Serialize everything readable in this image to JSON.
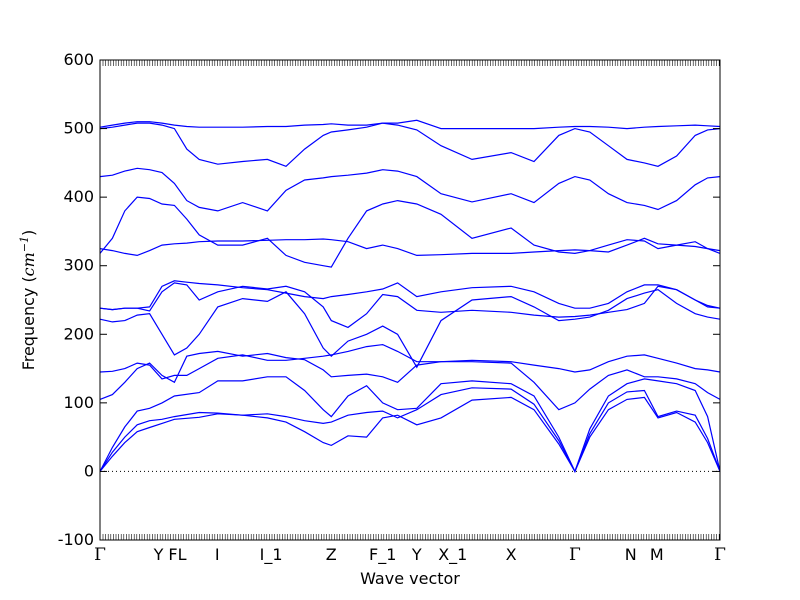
{
  "chart_data": {
    "type": "line",
    "title": "",
    "xlabel": "Wave vector",
    "ylabel": "Frequency (cm⁻¹)",
    "ylabel_prefix": "Frequency (",
    "ylabel_unit": "cm",
    "ylabel_exp": "−1",
    "ylabel_suffix": ")",
    "ylim": [
      -100,
      600
    ],
    "yticks": [
      -100,
      0,
      100,
      200,
      300,
      400,
      500,
      600
    ],
    "xlim": [
      0,
      1
    ],
    "grid": false,
    "legend": "none",
    "series_color": "#0000ff",
    "zero_line": {
      "y": 0,
      "style": "dotted",
      "color": "#000000"
    },
    "high_symmetry_points": [
      {
        "label": "Γ",
        "x": 0.0
      },
      {
        "label": "Y FL",
        "x": 0.113
      },
      {
        "label": "I",
        "x": 0.189
      },
      {
        "label": "I_1",
        "x": 0.276
      },
      {
        "label": "Z",
        "x": 0.373
      },
      {
        "label": "F_1",
        "x": 0.456
      },
      {
        "label": "Y",
        "x": 0.511
      },
      {
        "label": "X_1",
        "x": 0.569
      },
      {
        "label": "X",
        "x": 0.663
      },
      {
        "label": "Γ",
        "x": 0.766
      },
      {
        "label": "N",
        "x": 0.856
      },
      {
        "label": "M",
        "x": 0.898
      },
      {
        "label": "Γ",
        "x": 1.0
      }
    ],
    "series": [
      {
        "x": [
          0,
          0.02,
          0.04,
          0.06,
          0.08,
          0.1,
          0.12,
          0.16,
          0.19,
          0.23,
          0.27,
          0.3,
          0.33,
          0.36,
          0.373,
          0.4,
          0.43,
          0.456,
          0.48,
          0.511,
          0.55,
          0.6,
          0.663,
          0.7,
          0.74,
          0.766,
          0.79,
          0.82,
          0.85,
          0.878,
          0.9,
          0.93,
          0.96,
          0.98,
          1.0
        ],
        "values": [
          0,
          22,
          42,
          58,
          64,
          70,
          76,
          79,
          84,
          82,
          78,
          72,
          58,
          42,
          38,
          52,
          50,
          78,
          82,
          68,
          78,
          104,
          108,
          90,
          40,
          0,
          50,
          90,
          105,
          108,
          78,
          86,
          72,
          42,
          0
        ]
      },
      {
        "x": [
          0,
          0.02,
          0.04,
          0.06,
          0.08,
          0.1,
          0.12,
          0.16,
          0.19,
          0.23,
          0.27,
          0.3,
          0.33,
          0.36,
          0.373,
          0.4,
          0.43,
          0.456,
          0.48,
          0.511,
          0.55,
          0.6,
          0.663,
          0.7,
          0.74,
          0.766,
          0.79,
          0.82,
          0.85,
          0.878,
          0.9,
          0.93,
          0.96,
          0.98,
          1.0
        ],
        "values": [
          0,
          28,
          50,
          68,
          74,
          76,
          80,
          86,
          85,
          82,
          84,
          80,
          74,
          70,
          72,
          82,
          86,
          88,
          78,
          90,
          112,
          122,
          120,
          98,
          45,
          0,
          55,
          100,
          116,
          118,
          80,
          88,
          82,
          48,
          0
        ]
      },
      {
        "x": [
          0,
          0.02,
          0.04,
          0.06,
          0.08,
          0.1,
          0.12,
          0.16,
          0.19,
          0.23,
          0.27,
          0.3,
          0.33,
          0.36,
          0.373,
          0.4,
          0.43,
          0.456,
          0.48,
          0.511,
          0.55,
          0.6,
          0.663,
          0.7,
          0.74,
          0.766,
          0.79,
          0.82,
          0.85,
          0.878,
          0.9,
          0.93,
          0.96,
          0.98,
          1.0
        ],
        "values": [
          0,
          35,
          65,
          88,
          92,
          100,
          110,
          115,
          132,
          132,
          138,
          138,
          118,
          90,
          80,
          110,
          125,
          100,
          90,
          92,
          128,
          132,
          128,
          110,
          50,
          0,
          62,
          110,
          128,
          135,
          132,
          128,
          118,
          80,
          0
        ]
      },
      {
        "x": [
          0,
          0.02,
          0.04,
          0.06,
          0.08,
          0.1,
          0.12,
          0.14,
          0.16,
          0.19,
          0.23,
          0.27,
          0.3,
          0.33,
          0.36,
          0.373,
          0.4,
          0.43,
          0.456,
          0.48,
          0.511,
          0.55,
          0.6,
          0.663,
          0.7,
          0.74,
          0.766,
          0.79,
          0.82,
          0.85,
          0.878,
          0.9,
          0.93,
          0.96,
          0.98,
          1.0
        ],
        "values": [
          105,
          112,
          130,
          150,
          158,
          140,
          130,
          168,
          172,
          175,
          168,
          172,
          166,
          163,
          148,
          138,
          140,
          142,
          138,
          130,
          155,
          160,
          160,
          158,
          130,
          90,
          100,
          120,
          140,
          148,
          138,
          138,
          135,
          128,
          115,
          105
        ]
      },
      {
        "x": [
          0,
          0.02,
          0.04,
          0.06,
          0.08,
          0.1,
          0.12,
          0.14,
          0.16,
          0.19,
          0.23,
          0.27,
          0.3,
          0.33,
          0.36,
          0.373,
          0.4,
          0.43,
          0.456,
          0.48,
          0.511,
          0.55,
          0.6,
          0.663,
          0.7,
          0.74,
          0.766,
          0.79,
          0.82,
          0.85,
          0.878,
          0.9,
          0.93,
          0.96,
          0.98,
          1.0
        ],
        "values": [
          145,
          146,
          150,
          158,
          155,
          135,
          140,
          140,
          150,
          165,
          170,
          162,
          162,
          165,
          168,
          170,
          175,
          182,
          185,
          175,
          160,
          160,
          162,
          160,
          155,
          150,
          145,
          148,
          160,
          168,
          170,
          165,
          158,
          150,
          148,
          145
        ]
      },
      {
        "x": [
          0,
          0.02,
          0.04,
          0.06,
          0.08,
          0.1,
          0.12,
          0.14,
          0.16,
          0.19,
          0.23,
          0.27,
          0.3,
          0.33,
          0.36,
          0.373,
          0.4,
          0.43,
          0.456,
          0.48,
          0.511,
          0.55,
          0.6,
          0.663,
          0.7,
          0.74,
          0.766,
          0.79,
          0.82,
          0.85,
          0.878,
          0.9,
          0.93,
          0.96,
          0.98,
          1.0
        ],
        "values": [
          222,
          218,
          220,
          228,
          230,
          200,
          170,
          180,
          200,
          240,
          252,
          248,
          262,
          230,
          180,
          168,
          190,
          200,
          212,
          200,
          152,
          220,
          250,
          255,
          240,
          220,
          222,
          225,
          235,
          252,
          260,
          265,
          245,
          230,
          225,
          222
        ]
      },
      {
        "x": [
          0,
          0.02,
          0.04,
          0.06,
          0.08,
          0.1,
          0.12,
          0.14,
          0.16,
          0.19,
          0.23,
          0.27,
          0.3,
          0.33,
          0.36,
          0.373,
          0.4,
          0.43,
          0.456,
          0.48,
          0.511,
          0.55,
          0.6,
          0.663,
          0.7,
          0.74,
          0.766,
          0.79,
          0.82,
          0.85,
          0.878,
          0.9,
          0.93,
          0.96,
          0.98,
          1.0
        ],
        "values": [
          238,
          236,
          238,
          238,
          234,
          262,
          275,
          272,
          250,
          262,
          270,
          266,
          270,
          262,
          240,
          220,
          210,
          230,
          258,
          255,
          235,
          232,
          235,
          232,
          228,
          225,
          226,
          228,
          232,
          236,
          245,
          270,
          265,
          250,
          240,
          238
        ]
      },
      {
        "x": [
          0,
          0.02,
          0.04,
          0.06,
          0.08,
          0.1,
          0.12,
          0.14,
          0.16,
          0.19,
          0.23,
          0.27,
          0.3,
          0.33,
          0.36,
          0.373,
          0.4,
          0.43,
          0.456,
          0.48,
          0.511,
          0.55,
          0.6,
          0.663,
          0.7,
          0.74,
          0.766,
          0.79,
          0.82,
          0.85,
          0.878,
          0.9,
          0.93,
          0.96,
          0.98,
          1.0
        ],
        "values": [
          238,
          236,
          238,
          238,
          240,
          270,
          278,
          276,
          274,
          272,
          268,
          265,
          260,
          255,
          252,
          255,
          258,
          262,
          266,
          275,
          255,
          262,
          268,
          270,
          262,
          245,
          238,
          238,
          245,
          262,
          272,
          272,
          265,
          250,
          242,
          238
        ]
      },
      {
        "x": [
          0,
          0.02,
          0.04,
          0.06,
          0.08,
          0.1,
          0.12,
          0.14,
          0.16,
          0.19,
          0.23,
          0.27,
          0.3,
          0.33,
          0.36,
          0.373,
          0.4,
          0.43,
          0.456,
          0.48,
          0.511,
          0.55,
          0.6,
          0.663,
          0.7,
          0.74,
          0.766,
          0.79,
          0.82,
          0.85,
          0.878,
          0.9,
          0.93,
          0.96,
          0.98,
          1.0
        ],
        "values": [
          318,
          340,
          380,
          400,
          398,
          390,
          388,
          368,
          345,
          330,
          330,
          340,
          315,
          305,
          300,
          298,
          340,
          380,
          390,
          395,
          390,
          375,
          340,
          355,
          330,
          320,
          318,
          322,
          330,
          338,
          336,
          325,
          330,
          335,
          325,
          318
        ]
      },
      {
        "x": [
          0,
          0.02,
          0.04,
          0.06,
          0.08,
          0.1,
          0.12,
          0.14,
          0.16,
          0.19,
          0.23,
          0.27,
          0.3,
          0.33,
          0.36,
          0.373,
          0.4,
          0.43,
          0.456,
          0.48,
          0.511,
          0.55,
          0.6,
          0.663,
          0.7,
          0.74,
          0.766,
          0.79,
          0.82,
          0.85,
          0.878,
          0.9,
          0.93,
          0.96,
          0.98,
          1.0
        ],
        "values": [
          325,
          322,
          318,
          315,
          322,
          330,
          332,
          333,
          335,
          336,
          336,
          337,
          338,
          338,
          339,
          338,
          335,
          325,
          330,
          325,
          315,
          316,
          318,
          318,
          320,
          322,
          323,
          322,
          320,
          330,
          340,
          332,
          330,
          328,
          325,
          322
        ]
      },
      {
        "x": [
          0,
          0.02,
          0.04,
          0.06,
          0.08,
          0.1,
          0.12,
          0.14,
          0.16,
          0.19,
          0.23,
          0.27,
          0.3,
          0.33,
          0.36,
          0.373,
          0.4,
          0.43,
          0.456,
          0.48,
          0.511,
          0.55,
          0.6,
          0.663,
          0.7,
          0.74,
          0.766,
          0.79,
          0.82,
          0.85,
          0.878,
          0.9,
          0.93,
          0.96,
          0.98,
          1.0
        ],
        "values": [
          430,
          432,
          438,
          442,
          440,
          436,
          420,
          395,
          385,
          380,
          392,
          380,
          410,
          425,
          428,
          430,
          432,
          435,
          440,
          438,
          430,
          405,
          393,
          405,
          392,
          420,
          430,
          425,
          405,
          392,
          388,
          382,
          395,
          418,
          428,
          430
        ]
      },
      {
        "x": [
          0,
          0.02,
          0.04,
          0.06,
          0.08,
          0.1,
          0.12,
          0.14,
          0.16,
          0.19,
          0.23,
          0.27,
          0.3,
          0.33,
          0.36,
          0.373,
          0.4,
          0.43,
          0.456,
          0.48,
          0.511,
          0.55,
          0.6,
          0.663,
          0.7,
          0.74,
          0.766,
          0.79,
          0.82,
          0.85,
          0.878,
          0.9,
          0.93,
          0.96,
          0.98,
          1.0
        ],
        "values": [
          500,
          502,
          505,
          508,
          508,
          505,
          500,
          470,
          455,
          448,
          452,
          455,
          445,
          470,
          490,
          495,
          498,
          502,
          508,
          505,
          498,
          475,
          455,
          465,
          452,
          490,
          500,
          495,
          475,
          455,
          450,
          445,
          460,
          490,
          498,
          500
        ]
      },
      {
        "x": [
          0,
          0.02,
          0.04,
          0.06,
          0.08,
          0.1,
          0.12,
          0.14,
          0.16,
          0.19,
          0.23,
          0.27,
          0.3,
          0.33,
          0.36,
          0.373,
          0.4,
          0.43,
          0.456,
          0.48,
          0.511,
          0.55,
          0.6,
          0.663,
          0.7,
          0.74,
          0.766,
          0.79,
          0.82,
          0.85,
          0.878,
          0.9,
          0.93,
          0.96,
          0.98,
          1.0
        ],
        "values": [
          502,
          505,
          508,
          510,
          510,
          508,
          505,
          503,
          502,
          502,
          502,
          503,
          503,
          505,
          506,
          507,
          505,
          505,
          508,
          508,
          512,
          500,
          500,
          500,
          500,
          502,
          503,
          503,
          502,
          500,
          502,
          503,
          504,
          505,
          504,
          503
        ]
      }
    ]
  }
}
